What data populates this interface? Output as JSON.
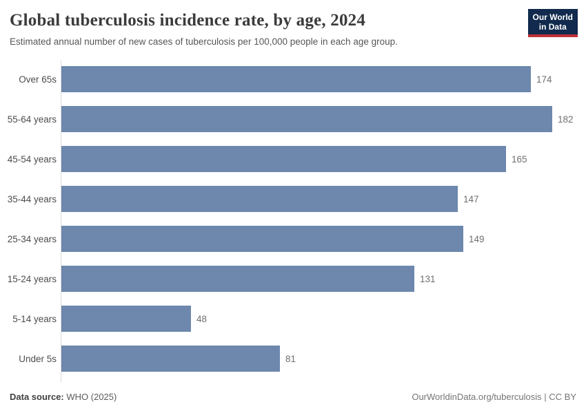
{
  "header": {
    "title": "Global tuberculosis incidence rate, by age, 2024",
    "subtitle": "Estimated annual number of new cases of tuberculosis per 100,000 people in each age group.",
    "logo": {
      "line1": "Our World",
      "line2": "in Data",
      "bg_color": "#112a4d",
      "accent_color": "#bf3036"
    }
  },
  "chart_data": {
    "type": "bar",
    "orientation": "horizontal",
    "title": "Global tuberculosis incidence rate, by age, 2024",
    "subtitle": "Estimated annual number of new cases of tuberculosis per 100,000 people in each age group.",
    "categories": [
      "Over 65s",
      "55-64 years",
      "45-54 years",
      "35-44 years",
      "25-34 years",
      "15-24 years",
      "5-14 years",
      "Under 5s"
    ],
    "values": [
      174,
      182,
      165,
      147,
      149,
      131,
      48,
      81
    ],
    "xlabel": "",
    "ylabel": "",
    "xlim": [
      0,
      182
    ],
    "grid": false,
    "value_labels": true,
    "bar_color": "#6d87ad",
    "axis_color": "#dadada",
    "legend": "none"
  },
  "footer": {
    "data_source_label": "Data source:",
    "data_source_value": "WHO (2025)",
    "attribution": "OurWorldinData.org/tuberculosis | CC BY"
  }
}
